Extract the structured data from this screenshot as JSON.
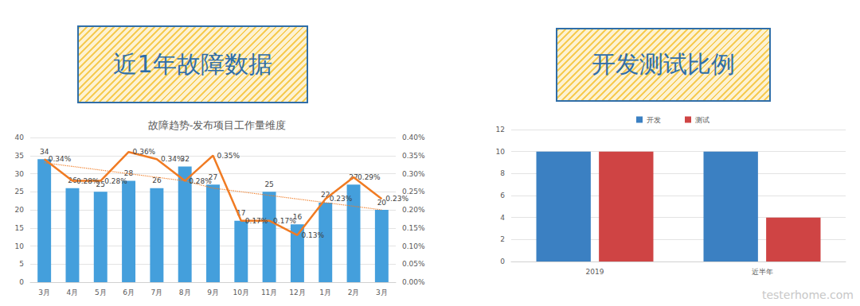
{
  "chart_data": [
    {
      "type": "bar",
      "heading": "近1年故障数据",
      "title": "故障趋势-发布项目工作量维度",
      "categories": [
        "3月",
        "4月",
        "5月",
        "6月",
        "7月",
        "8月",
        "9月",
        "10月",
        "11月",
        "12月",
        "1月",
        "2月",
        "3月"
      ],
      "series": [
        {
          "type": "bar",
          "color": "#449fdc",
          "values": [
            34,
            26,
            25,
            28,
            26,
            32,
            27,
            17,
            25,
            16,
            22,
            27,
            20
          ],
          "data_labels": true
        },
        {
          "type": "line",
          "color": "#f07b23",
          "axis": "y2",
          "marker": "none",
          "data_labels": true,
          "values": [
            0.34,
            0.28,
            0.28,
            0.36,
            0.34,
            0.28,
            0.35,
            0.17,
            0.17,
            0.13,
            0.23,
            0.29,
            0.23
          ],
          "value_labels": [
            "0.34%",
            "0.28%",
            "0.28%",
            "0.36%",
            "0.34%",
            "0.28%",
            "0.35%",
            "0.17%",
            "0.17%",
            "0.13%",
            "0.23%",
            "0.29%",
            "0.23%"
          ]
        },
        {
          "type": "line",
          "color": "#f07b23",
          "axis": "y2",
          "marker": "none",
          "line_style": "dotted",
          "data_labels": false,
          "values": [
            0.33,
            0.32,
            0.31,
            0.3,
            0.29,
            0.28,
            0.26,
            0.25,
            0.24,
            0.23,
            0.22,
            0.21,
            0.2
          ]
        }
      ],
      "ylim": [
        0,
        40
      ],
      "yticks": [
        0,
        5,
        10,
        15,
        20,
        25,
        30,
        35,
        40
      ],
      "y2lim": [
        0,
        0.4
      ],
      "y2ticks": [
        {
          "value": 0,
          "label": "0.00%"
        },
        {
          "value": 0.05,
          "label": "0.05%"
        },
        {
          "value": 0.1,
          "label": "0.10%"
        },
        {
          "value": 0.15,
          "label": "0.15%"
        },
        {
          "value": 0.2,
          "label": "0.20%"
        },
        {
          "value": 0.25,
          "label": "0.25%"
        },
        {
          "value": 0.3,
          "label": "0.30%"
        },
        {
          "value": 0.35,
          "label": "0.35%"
        },
        {
          "value": 0.4,
          "label": "0.40%"
        }
      ],
      "grid": true
    },
    {
      "type": "bar",
      "heading": "开发测试比例",
      "categories": [
        "2019",
        "近半年"
      ],
      "series": [
        {
          "name": "开发",
          "color": "#3b80c2",
          "values": [
            10,
            10
          ]
        },
        {
          "name": "测试",
          "color": "#cf4444",
          "values": [
            10,
            4
          ]
        }
      ],
      "ylim": [
        0,
        12
      ],
      "yticks": [
        0,
        2,
        4,
        6,
        8,
        10,
        12
      ],
      "grid": true,
      "legend": "top"
    }
  ],
  "watermark": "testerhome.com"
}
